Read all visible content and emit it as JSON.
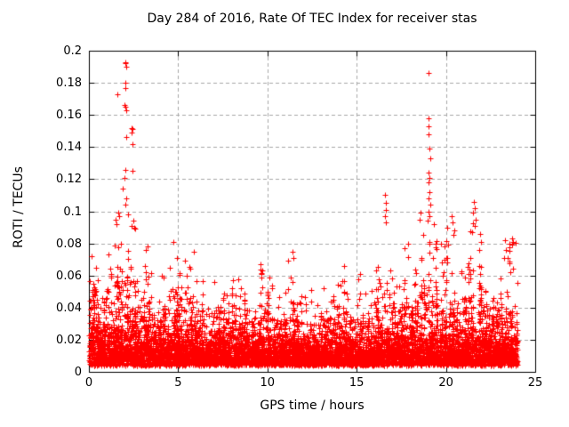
{
  "chart_data": {
    "type": "scatter",
    "title": "Day 284 of 2016, Rate Of TEC Index for receiver stas",
    "xlabel": "GPS time / hours",
    "ylabel": "ROTI / TECUs",
    "xlim": [
      0,
      25
    ],
    "ylim": [
      0,
      0.2
    ],
    "xtick_values": [
      0,
      5,
      10,
      15,
      20,
      25
    ],
    "xtick_labels": [
      "0",
      "5",
      "10",
      "15",
      "20",
      "25"
    ],
    "ytick_values": [
      0,
      0.02,
      0.04,
      0.06,
      0.08,
      0.1,
      0.12,
      0.14,
      0.16,
      0.18,
      0.2
    ],
    "ytick_labels": [
      "0",
      "0.02",
      "0.04",
      "0.06",
      "0.08",
      "0.1",
      "0.12",
      "0.14",
      "0.16",
      "0.18",
      "0.2"
    ],
    "grid": true,
    "legend": "none",
    "marker": "plus",
    "colors": {
      "marker": "#ff0000",
      "grid": "#a8a8a8",
      "frame": "#000000",
      "background": "#ffffff",
      "text": "#000000"
    },
    "data_x_extent": [
      0,
      24
    ],
    "noise_floor": 0.004,
    "bin_width_hours": 0.5,
    "dense_band_top": [
      0.05,
      0.04,
      0.045,
      0.05,
      0.055,
      0.035,
      0.045,
      0.03,
      0.035,
      0.045,
      0.04,
      0.04,
      0.035,
      0.03,
      0.035,
      0.03,
      0.035,
      0.035,
      0.03,
      0.035,
      0.032,
      0.03,
      0.04,
      0.032,
      0.03,
      0.026,
      0.03,
      0.03,
      0.035,
      0.03,
      0.03,
      0.03,
      0.04,
      0.04,
      0.035,
      0.04,
      0.04,
      0.045,
      0.05,
      0.04,
      0.04,
      0.035,
      0.04,
      0.04,
      0.035,
      0.03,
      0.035,
      0.035
    ],
    "cluster_top": [
      0.073,
      0.062,
      0.082,
      0.086,
      0.092,
      0.06,
      0.078,
      0.052,
      0.063,
      0.081,
      0.072,
      0.075,
      0.058,
      0.05,
      0.058,
      0.056,
      0.06,
      0.056,
      0.052,
      0.067,
      0.067,
      0.052,
      0.075,
      0.056,
      0.052,
      0.046,
      0.052,
      0.057,
      0.067,
      0.05,
      0.061,
      0.055,
      0.082,
      0.07,
      0.06,
      0.08,
      0.07,
      0.088,
      0.098,
      0.088,
      0.09,
      0.07,
      0.095,
      0.086,
      0.061,
      0.056,
      0.078,
      0.083
    ],
    "outliers": [
      [
        1.6,
        0.173
      ],
      [
        2.02,
        0.193
      ],
      [
        2.06,
        0.192
      ],
      [
        2.1,
        0.19
      ],
      [
        2.04,
        0.18
      ],
      [
        2.06,
        0.177
      ],
      [
        2.0,
        0.166
      ],
      [
        2.05,
        0.165
      ],
      [
        2.08,
        0.163
      ],
      [
        2.38,
        0.152
      ],
      [
        2.43,
        0.151
      ],
      [
        2.4,
        0.149
      ],
      [
        2.09,
        0.146
      ],
      [
        2.45,
        0.142
      ],
      [
        2.05,
        0.126
      ],
      [
        2.45,
        0.125
      ],
      [
        1.98,
        0.121
      ],
      [
        1.9,
        0.114
      ],
      [
        2.1,
        0.108
      ],
      [
        2.02,
        0.104
      ],
      [
        2.2,
        0.098
      ],
      [
        1.63,
        0.099
      ],
      [
        1.5,
        0.095
      ],
      [
        1.55,
        0.092
      ],
      [
        1.7,
        0.097
      ],
      [
        2.5,
        0.094
      ],
      [
        2.55,
        0.09
      ],
      [
        2.6,
        0.089
      ],
      [
        2.4,
        0.091
      ],
      [
        16.6,
        0.11
      ],
      [
        16.63,
        0.105
      ],
      [
        16.65,
        0.101
      ],
      [
        16.6,
        0.097
      ],
      [
        16.64,
        0.093
      ],
      [
        19.0,
        0.186
      ],
      [
        19.02,
        0.158
      ],
      [
        19.0,
        0.153
      ],
      [
        19.04,
        0.148
      ],
      [
        19.06,
        0.139
      ],
      [
        19.1,
        0.133
      ],
      [
        19.0,
        0.124
      ],
      [
        19.05,
        0.121
      ],
      [
        19.02,
        0.118
      ],
      [
        19.06,
        0.112
      ],
      [
        19.0,
        0.108
      ],
      [
        19.1,
        0.104
      ],
      [
        19.03,
        0.1
      ],
      [
        19.08,
        0.097
      ],
      [
        18.95,
        0.094
      ],
      [
        19.3,
        0.092
      ],
      [
        18.6,
        0.099
      ],
      [
        18.55,
        0.095
      ],
      [
        20.3,
        0.097
      ],
      [
        20.38,
        0.093
      ],
      [
        20.45,
        0.088
      ],
      [
        19.9,
        0.07
      ],
      [
        21.55,
        0.106
      ],
      [
        21.6,
        0.102
      ],
      [
        21.5,
        0.099
      ],
      [
        21.65,
        0.095
      ],
      [
        21.6,
        0.091
      ],
      [
        21.45,
        0.087
      ],
      [
        21.9,
        0.086
      ],
      [
        21.95,
        0.081
      ],
      [
        21.88,
        0.076
      ],
      [
        23.3,
        0.082
      ],
      [
        23.35,
        0.076
      ],
      [
        23.28,
        0.071
      ],
      [
        23.7,
        0.083
      ],
      [
        23.74,
        0.081
      ],
      [
        23.7,
        0.079
      ],
      [
        9.6,
        0.067
      ],
      [
        11.38,
        0.075
      ],
      [
        11.44,
        0.071
      ],
      [
        14.3,
        0.066
      ],
      [
        15.2,
        0.061
      ],
      [
        4.75,
        0.081
      ],
      [
        0.15,
        0.072
      ],
      [
        3.3,
        0.078
      ],
      [
        5.9,
        0.075
      ],
      [
        17.9,
        0.08
      ]
    ],
    "synthesis": {
      "seed": 12345,
      "base_points_per_bin": 110,
      "sprinkle_points_per_bin": 6,
      "columns_per_bin": 8,
      "points_per_column": 6
    }
  }
}
